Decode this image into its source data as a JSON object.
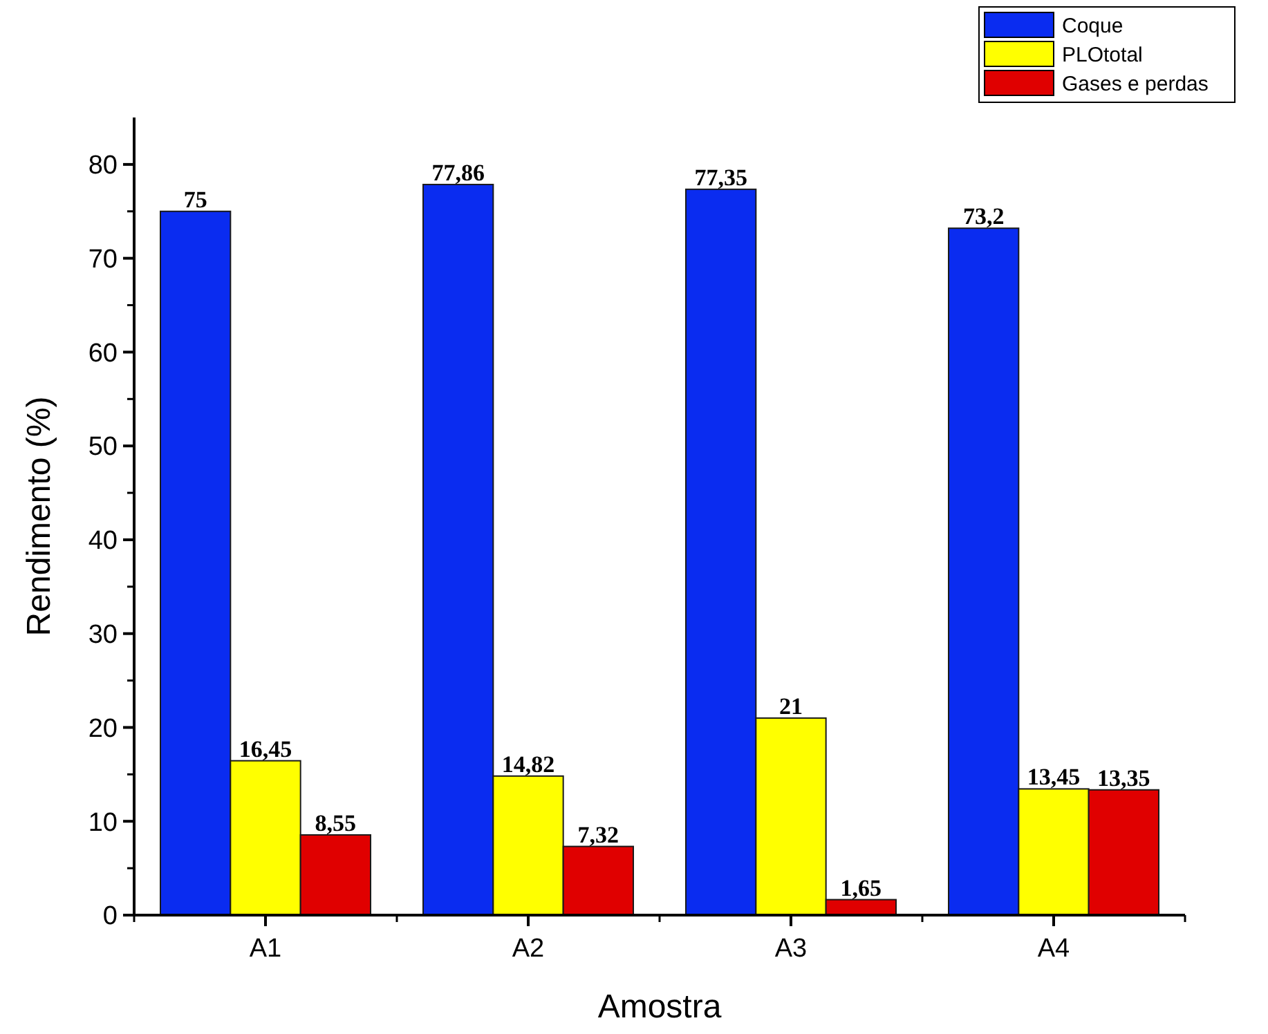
{
  "chart_data": {
    "type": "bar",
    "xlabel": "Amostra",
    "ylabel": "Rendimento (%)",
    "categories": [
      "A1",
      "A2",
      "A3",
      "A4"
    ],
    "series": [
      {
        "name": "Coque",
        "color": "#0a2cf0",
        "values": [
          75,
          77.86,
          77.35,
          73.2
        ],
        "value_labels": [
          "75",
          "77,86",
          "77,35",
          "73,2"
        ]
      },
      {
        "name": "PLOtotal",
        "color": "#ffff00",
        "values": [
          16.45,
          14.82,
          21,
          13.45
        ],
        "value_labels": [
          "16,45",
          "14,82",
          "21",
          "13,45"
        ]
      },
      {
        "name": "Gases e perdas",
        "color": "#e00000",
        "values": [
          8.55,
          7.32,
          1.65,
          13.35
        ],
        "value_labels": [
          "8,55",
          "7,32",
          "1,65",
          "13,35"
        ]
      }
    ],
    "ylim": [
      0,
      85
    ],
    "yticks": [
      0,
      10,
      20,
      30,
      40,
      50,
      60,
      70,
      80
    ],
    "grid": false,
    "legend": "top right"
  }
}
